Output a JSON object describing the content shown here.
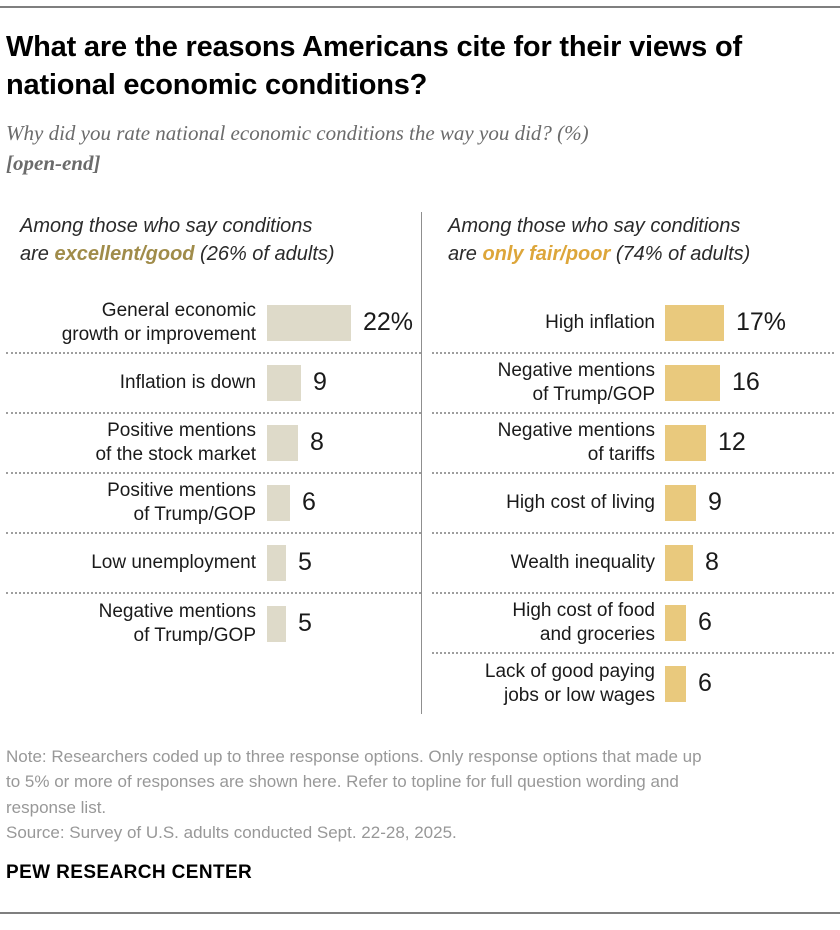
{
  "title": "What are the reasons Americans cite for their views of\nnational economic conditions?",
  "subtitle": {
    "line1": "Why did you rate national economic conditions the way you did? (%)",
    "line2": "[open-end]"
  },
  "panels": [
    {
      "name": "excellent-good",
      "header_prefix": "Among those who say conditions\nare ",
      "highlight": "excellent/good",
      "header_suffix": " (26% of adults)",
      "highlight_color": "#a08c4a",
      "bar_color": "#dedac9",
      "share_of_adults": "26% of adults",
      "rows": [
        {
          "label": "General economic\ngrowth or improvement",
          "value": 22,
          "display": "22%"
        },
        {
          "label": "Inflation is down",
          "value": 9,
          "display": "9"
        },
        {
          "label": "Positive mentions\nof the stock market",
          "value": 8,
          "display": "8"
        },
        {
          "label": "Positive mentions\nof Trump/GOP",
          "value": 6,
          "display": "6"
        },
        {
          "label": "Low unemployment",
          "value": 5,
          "display": "5"
        },
        {
          "label": "Negative mentions\nof Trump/GOP",
          "value": 5,
          "display": "5"
        }
      ]
    },
    {
      "name": "only-fair-poor",
      "header_prefix": "Among those who say conditions\nare ",
      "highlight": "only fair/poor",
      "header_suffix": " (74% of adults)",
      "highlight_color": "#dda63a",
      "bar_color": "#e9c97d",
      "share_of_adults": "74% of adults",
      "rows": [
        {
          "label": "High inflation",
          "value": 17,
          "display": "17%"
        },
        {
          "label": "Negative mentions\nof Trump/GOP",
          "value": 16,
          "display": "16"
        },
        {
          "label": "Negative mentions\nof tariffs",
          "value": 12,
          "display": "12"
        },
        {
          "label": "High cost of living",
          "value": 9,
          "display": "9"
        },
        {
          "label": "Wealth inequality",
          "value": 8,
          "display": "8"
        },
        {
          "label": "High cost of food\nand groceries",
          "value": 6,
          "display": "6"
        },
        {
          "label": "Lack of good paying\njobs or low wages",
          "value": 6,
          "display": "6"
        }
      ]
    }
  ],
  "chart_data": [
    {
      "type": "bar",
      "orientation": "horizontal",
      "title": "Among those who say conditions are excellent/good (26% of adults)",
      "categories": [
        "General economic growth or improvement",
        "Inflation is down",
        "Positive mentions of the stock market",
        "Positive mentions of Trump/GOP",
        "Low unemployment",
        "Negative mentions of Trump/GOP"
      ],
      "values": [
        22,
        9,
        8,
        6,
        5,
        5
      ],
      "unit": "%",
      "xlim": [
        0,
        25
      ],
      "bar_color": "#dedac9",
      "value_labels": [
        "22%",
        "9",
        "8",
        "6",
        "5",
        "5"
      ],
      "grid": false,
      "legend": false
    },
    {
      "type": "bar",
      "orientation": "horizontal",
      "title": "Among those who say conditions are only fair/poor (74% of adults)",
      "categories": [
        "High inflation",
        "Negative mentions of Trump/GOP",
        "Negative mentions of tariffs",
        "High cost of living",
        "Wealth inequality",
        "High cost of food and groceries",
        "Lack of good paying jobs or low wages"
      ],
      "values": [
        17,
        16,
        12,
        9,
        8,
        6,
        6
      ],
      "unit": "%",
      "xlim": [
        0,
        25
      ],
      "bar_color": "#e9c97d",
      "value_labels": [
        "17%",
        "16",
        "12",
        "9",
        "8",
        "6",
        "6"
      ],
      "grid": false,
      "legend": false
    }
  ],
  "note": {
    "text": "Note: Researchers coded up to three response options. Only response options that made up\nto 5% or more of responses are shown here. Refer to topline for full question wording and\nresponse list.",
    "source": "Source: Survey of U.S. adults conducted Sept. 22-28, 2025."
  },
  "footer": {
    "brand": "PEW RESEARCH CENTER"
  },
  "colors": {
    "left_bar": "#dedac9",
    "right_bar": "#e9c97d",
    "left_highlight": "#a08c4a",
    "right_highlight": "#dda63a",
    "rule_gray": "#7f7f7f",
    "note_gray": "#989898"
  }
}
